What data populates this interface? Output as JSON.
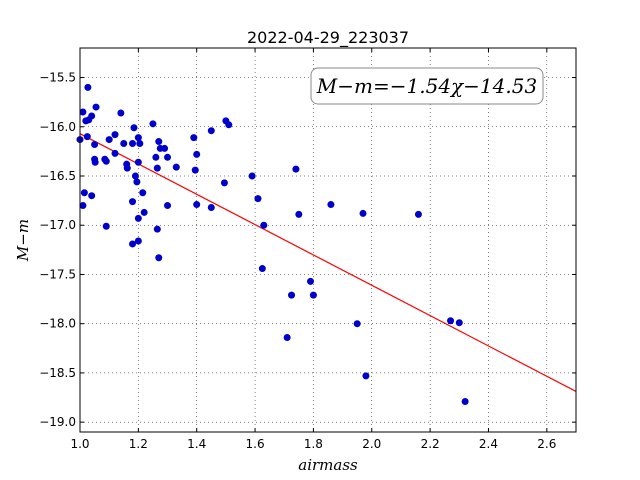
{
  "chart_data": {
    "type": "scatter",
    "title": "2022-04-29_223037",
    "xlabel": "airmass",
    "ylabel": "M−m",
    "xlim": [
      1.0,
      2.7
    ],
    "ylim": [
      -19.1,
      -15.2
    ],
    "x_ticks": [
      1.0,
      1.2,
      1.4,
      1.6,
      1.8,
      2.0,
      2.2,
      2.4,
      2.6
    ],
    "y_ticks": [
      -15.5,
      -16.0,
      -16.5,
      -17.0,
      -17.5,
      -18.0,
      -18.5,
      -19.0
    ],
    "x_tick_labels": [
      "1.0",
      "1.2",
      "1.4",
      "1.6",
      "1.8",
      "2.0",
      "2.2",
      "2.4",
      "2.6"
    ],
    "y_tick_labels": [
      "−15.5",
      "−16.0",
      "−16.5",
      "−17.0",
      "−17.5",
      "−18.0",
      "−18.5",
      "−19.0"
    ],
    "grid": true,
    "annotation": "M−m=−1.54χ−14.53",
    "fit": {
      "slope": -1.54,
      "intercept": -14.53,
      "color": "#ff0000"
    },
    "point_color": "#0000cc",
    "points": [
      [
        1.0,
        -16.13
      ],
      [
        1.01,
        -15.85
      ],
      [
        1.01,
        -16.8
      ],
      [
        1.015,
        -16.67
      ],
      [
        1.02,
        -15.94
      ],
      [
        1.025,
        -16.1
      ],
      [
        1.027,
        -15.6
      ],
      [
        1.03,
        -15.93
      ],
      [
        1.04,
        -16.7
      ],
      [
        1.04,
        -15.89
      ],
      [
        1.05,
        -16.18
      ],
      [
        1.05,
        -16.33
      ],
      [
        1.052,
        -16.36
      ],
      [
        1.055,
        -15.8
      ],
      [
        1.085,
        -16.33
      ],
      [
        1.09,
        -16.35
      ],
      [
        1.09,
        -17.01
      ],
      [
        1.1,
        -16.13
      ],
      [
        1.12,
        -16.27
      ],
      [
        1.12,
        -16.08
      ],
      [
        1.14,
        -15.86
      ],
      [
        1.15,
        -16.17
      ],
      [
        1.16,
        -16.38
      ],
      [
        1.162,
        -16.42
      ],
      [
        1.18,
        -16.17
      ],
      [
        1.18,
        -16.76
      ],
      [
        1.18,
        -17.19
      ],
      [
        1.185,
        -16.01
      ],
      [
        1.19,
        -16.5
      ],
      [
        1.195,
        -16.56
      ],
      [
        1.2,
        -16.36
      ],
      [
        1.2,
        -16.11
      ],
      [
        1.2,
        -16.93
      ],
      [
        1.2,
        -17.16
      ],
      [
        1.205,
        -16.17
      ],
      [
        1.215,
        -16.67
      ],
      [
        1.22,
        -16.87
      ],
      [
        1.25,
        -15.97
      ],
      [
        1.26,
        -16.31
      ],
      [
        1.265,
        -17.04
      ],
      [
        1.265,
        -16.42
      ],
      [
        1.27,
        -17.33
      ],
      [
        1.27,
        -16.15
      ],
      [
        1.275,
        -16.22
      ],
      [
        1.29,
        -16.22
      ],
      [
        1.3,
        -16.31
      ],
      [
        1.3,
        -16.8
      ],
      [
        1.33,
        -16.41
      ],
      [
        1.39,
        -16.11
      ],
      [
        1.395,
        -16.44
      ],
      [
        1.4,
        -16.28
      ],
      [
        1.4,
        -16.79
      ],
      [
        1.45,
        -16.82
      ],
      [
        1.45,
        -16.04
      ],
      [
        1.495,
        -16.57
      ],
      [
        1.5,
        -15.94
      ],
      [
        1.51,
        -15.98
      ],
      [
        1.59,
        -16.5
      ],
      [
        1.61,
        -16.73
      ],
      [
        1.625,
        -17.44
      ],
      [
        1.63,
        -17.0
      ],
      [
        1.71,
        -18.14
      ],
      [
        1.725,
        -17.71
      ],
      [
        1.74,
        -16.43
      ],
      [
        1.75,
        -16.89
      ],
      [
        1.79,
        -17.57
      ],
      [
        1.8,
        -17.71
      ],
      [
        1.86,
        -16.79
      ],
      [
        1.95,
        -18.0
      ],
      [
        1.97,
        -16.88
      ],
      [
        1.98,
        -18.53
      ],
      [
        2.16,
        -16.89
      ],
      [
        2.27,
        -17.97
      ],
      [
        2.3,
        -17.99
      ],
      [
        2.32,
        -18.79
      ]
    ]
  }
}
